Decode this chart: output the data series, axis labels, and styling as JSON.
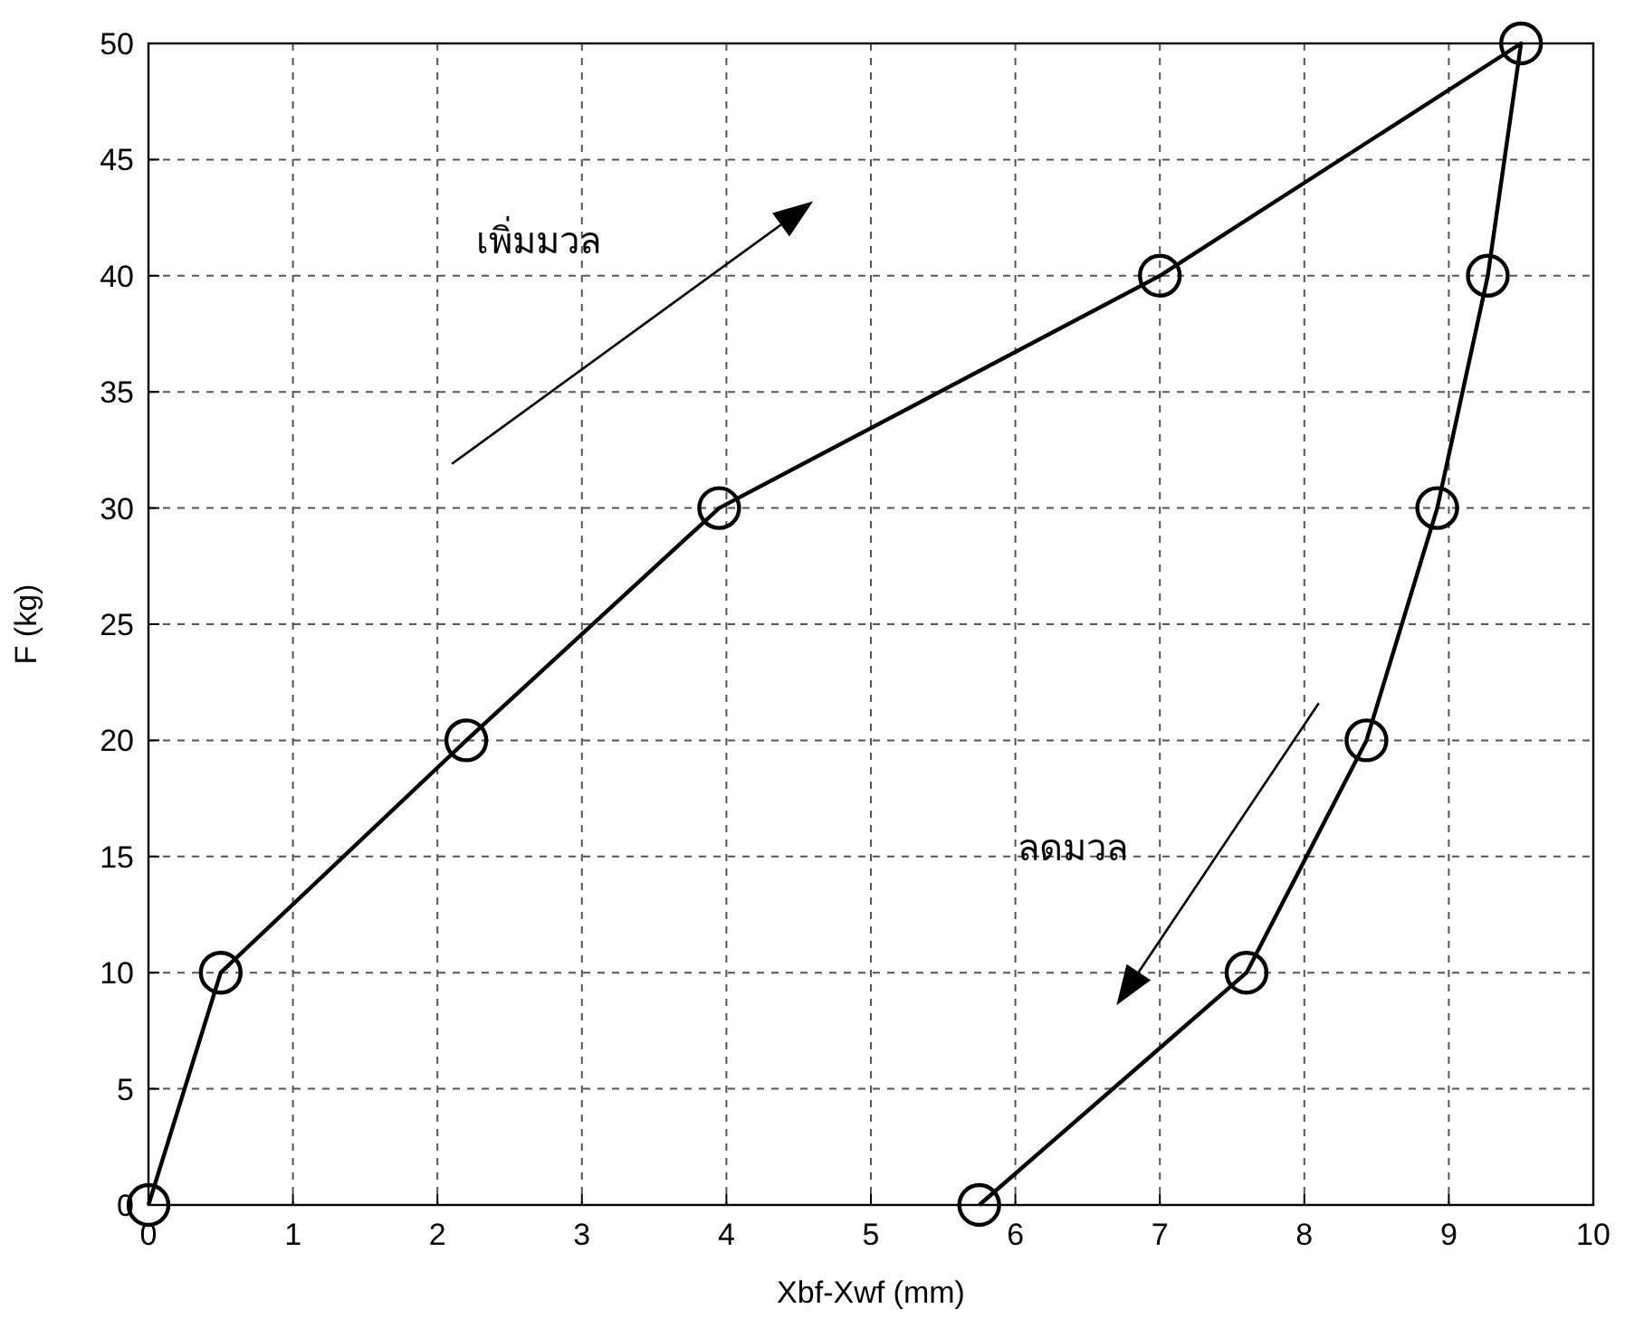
{
  "chart_data": {
    "type": "line",
    "xlabel": "Xbf-Xwf (mm)",
    "ylabel": "F (kg)",
    "x": [
      0,
      0.5,
      2.2,
      3.95,
      7,
      9.5,
      9.27,
      8.92,
      8.43,
      7.6,
      5.75
    ],
    "series": [
      {
        "color": "#000000",
        "values": [
          0,
          10,
          20,
          30,
          40,
          50,
          40,
          30,
          20,
          10,
          0
        ]
      }
    ],
    "xlim": [
      0,
      10
    ],
    "xticks": [
      0,
      1,
      2,
      3,
      4,
      5,
      6,
      7,
      8,
      9,
      10
    ],
    "ylim": [
      0,
      50
    ],
    "yticks": [
      0,
      5,
      10,
      15,
      20,
      25,
      30,
      35,
      40,
      45,
      50
    ],
    "grid": true,
    "marker": "circle",
    "line_style": "solid",
    "annotations": [
      "เพิ่มมวล",
      "ลดมวล"
    ]
  }
}
